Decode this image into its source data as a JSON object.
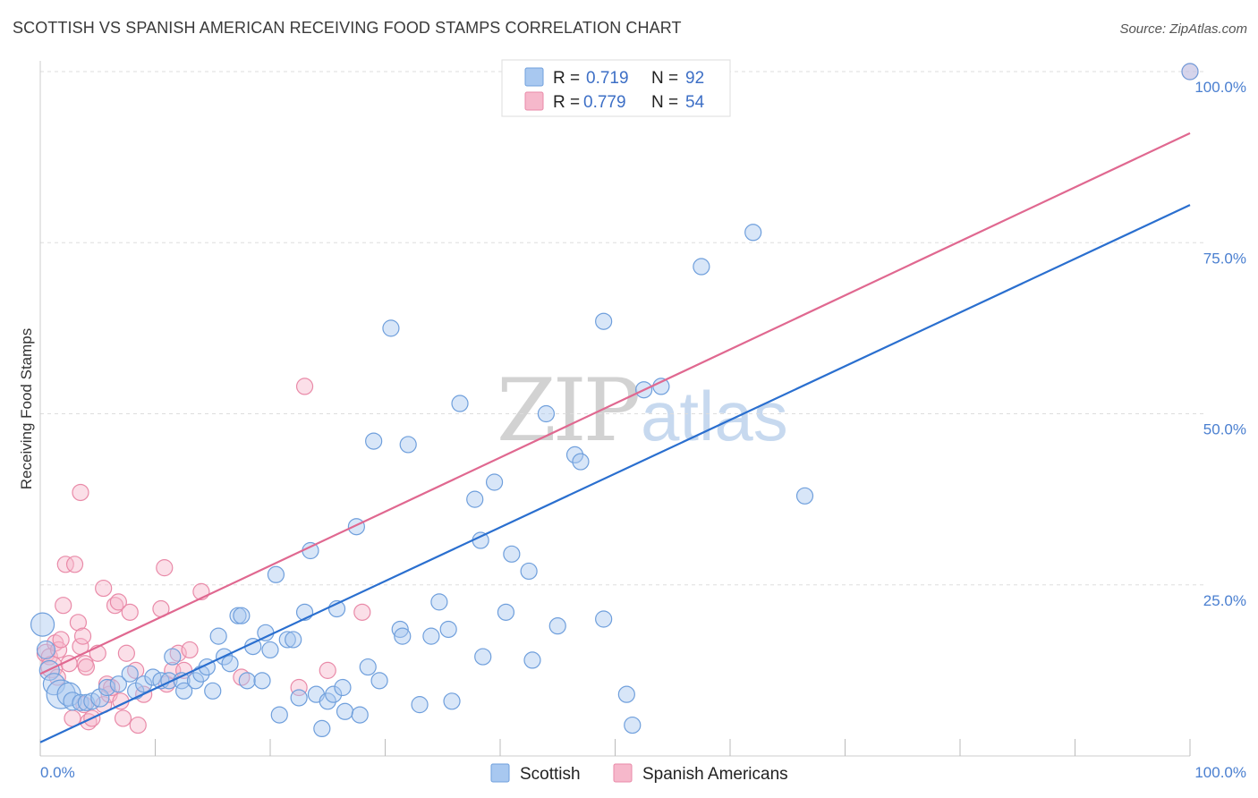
{
  "title": "SCOTTISH VS SPANISH AMERICAN RECEIVING FOOD STAMPS CORRELATION CHART",
  "source": "Source: ZipAtlas.com",
  "watermark": {
    "zip": "ZIP",
    "atlas": "atlas"
  },
  "colors": {
    "blue_fill": "#a8c8f0",
    "blue_stroke": "#6f9fdc",
    "blue_line": "#2a6fcf",
    "pink_fill": "#f6b8cb",
    "pink_stroke": "#e98aa8",
    "pink_line": "#e06890",
    "grid": "#dddddd",
    "axis_label": "#4a7fd0"
  },
  "chart_data": {
    "type": "scatter",
    "xlabel": "",
    "ylabel": "Receiving Food Stamps",
    "xlim": [
      0,
      100
    ],
    "ylim": [
      0,
      100
    ],
    "x_tick_labels": {
      "left": "0.0%",
      "right": "100.0%"
    },
    "y_tick_labels": [
      "25.0%",
      "50.0%",
      "75.0%",
      "100.0%"
    ],
    "y_ticks": [
      25,
      50,
      75,
      100
    ],
    "legend": [
      {
        "swatch": "blue",
        "r_label": "R =",
        "r_value": "0.719",
        "n_label": "N =",
        "n_value": "92"
      },
      {
        "swatch": "pink",
        "r_label": "R =",
        "r_value": "0.779",
        "n_label": "N =",
        "n_value": "54"
      }
    ],
    "bottom_legend": [
      "Scottish",
      "Spanish Americans"
    ],
    "series": [
      {
        "name": "Scottish",
        "color": "blue",
        "trend": {
          "x": [
            0,
            100
          ],
          "y": [
            2.0,
            80.5
          ]
        },
        "points": [
          [
            0.2,
            19.2,
            13
          ],
          [
            0.5,
            15.5,
            10
          ],
          [
            0.8,
            12.5,
            11
          ],
          [
            1.2,
            10.5,
            12
          ],
          [
            1.8,
            9.0,
            16
          ],
          [
            2.5,
            9.0,
            13
          ],
          [
            2.8,
            8.0,
            10
          ],
          [
            3.5,
            7.8,
            9
          ],
          [
            4.0,
            7.8,
            9
          ],
          [
            4.5,
            8.0,
            9
          ],
          [
            5.2,
            8.5,
            10
          ],
          [
            5.8,
            10.0,
            9
          ],
          [
            6.8,
            10.5,
            9
          ],
          [
            7.8,
            12.0,
            9
          ],
          [
            8.3,
            9.5,
            9
          ],
          [
            9.0,
            10.5,
            9
          ],
          [
            9.8,
            11.5,
            9
          ],
          [
            10.5,
            11.0,
            9
          ],
          [
            11.2,
            11.0,
            9
          ],
          [
            11.5,
            14.5,
            9
          ],
          [
            12.3,
            11.0,
            9
          ],
          [
            12.5,
            9.5,
            9
          ],
          [
            13.5,
            11.0,
            9
          ],
          [
            14.0,
            12.0,
            9
          ],
          [
            14.5,
            13.0,
            9
          ],
          [
            15.0,
            9.5,
            9
          ],
          [
            15.5,
            17.5,
            9
          ],
          [
            16.0,
            14.5,
            9
          ],
          [
            16.5,
            13.5,
            9
          ],
          [
            17.2,
            20.5,
            9
          ],
          [
            17.5,
            20.5,
            9
          ],
          [
            18.0,
            11.0,
            9
          ],
          [
            18.5,
            16.0,
            9
          ],
          [
            19.3,
            11.0,
            9
          ],
          [
            19.6,
            18.0,
            9
          ],
          [
            20.0,
            15.5,
            9
          ],
          [
            20.5,
            26.5,
            9
          ],
          [
            20.8,
            6.0,
            9
          ],
          [
            21.5,
            17.0,
            9
          ],
          [
            22.0,
            17.0,
            9
          ],
          [
            22.5,
            8.5,
            9
          ],
          [
            23.0,
            21.0,
            9
          ],
          [
            23.5,
            30.0,
            9
          ],
          [
            24.0,
            9.0,
            9
          ],
          [
            24.5,
            4.0,
            9
          ],
          [
            25.0,
            8.0,
            9
          ],
          [
            25.5,
            9.0,
            9
          ],
          [
            25.8,
            21.5,
            9
          ],
          [
            26.3,
            10.0,
            9
          ],
          [
            26.5,
            6.5,
            9
          ],
          [
            27.5,
            33.5,
            9
          ],
          [
            27.8,
            6.0,
            9
          ],
          [
            28.5,
            13.0,
            9
          ],
          [
            29.0,
            46.0,
            9
          ],
          [
            29.5,
            11.0,
            9
          ],
          [
            30.5,
            62.5,
            9
          ],
          [
            31.3,
            18.5,
            9
          ],
          [
            31.5,
            17.5,
            9
          ],
          [
            32.0,
            45.5,
            9
          ],
          [
            33.0,
            7.5,
            9
          ],
          [
            34.0,
            17.5,
            9
          ],
          [
            34.7,
            22.5,
            9
          ],
          [
            35.5,
            18.5,
            9
          ],
          [
            35.8,
            8.0,
            9
          ],
          [
            36.5,
            51.5,
            9
          ],
          [
            37.8,
            37.5,
            9
          ],
          [
            38.3,
            31.5,
            9
          ],
          [
            38.5,
            14.5,
            9
          ],
          [
            39.5,
            40.0,
            9
          ],
          [
            40.5,
            21.0,
            9
          ],
          [
            41.0,
            29.5,
            9
          ],
          [
            42.5,
            27.0,
            9
          ],
          [
            42.8,
            14.0,
            9
          ],
          [
            44.0,
            50.0,
            9
          ],
          [
            45.0,
            19.0,
            9
          ],
          [
            46.5,
            44.0,
            9
          ],
          [
            47.0,
            43.0,
            9
          ],
          [
            49.0,
            63.5,
            9
          ],
          [
            49.0,
            20.0,
            9
          ],
          [
            51.0,
            9.0,
            9
          ],
          [
            51.5,
            4.5,
            9
          ],
          [
            52.5,
            53.5,
            9
          ],
          [
            54.0,
            54.0,
            9
          ],
          [
            57.5,
            71.5,
            9
          ],
          [
            62.0,
            76.5,
            9
          ],
          [
            66.5,
            38.0,
            9
          ],
          [
            100.0,
            100.0,
            9
          ]
        ]
      },
      {
        "name": "Spanish Americans",
        "color": "pink",
        "trend": {
          "x": [
            0,
            100
          ],
          "y": [
            12.0,
            91.0
          ]
        },
        "points": [
          [
            0.5,
            15.0,
            10
          ],
          [
            0.8,
            14.5,
            9
          ],
          [
            1.0,
            13.0,
            12
          ],
          [
            1.3,
            16.5,
            9
          ],
          [
            1.5,
            11.5,
            9
          ],
          [
            1.6,
            15.5,
            9
          ],
          [
            1.8,
            17.0,
            9
          ],
          [
            2.0,
            22.0,
            9
          ],
          [
            2.2,
            28.0,
            9
          ],
          [
            2.5,
            13.5,
            9
          ],
          [
            2.8,
            5.5,
            9
          ],
          [
            3.0,
            28.0,
            9
          ],
          [
            3.3,
            19.5,
            9
          ],
          [
            3.5,
            16.0,
            9
          ],
          [
            3.5,
            38.5,
            9
          ],
          [
            3.7,
            17.5,
            9
          ],
          [
            3.8,
            7.5,
            9
          ],
          [
            3.9,
            13.5,
            9
          ],
          [
            4.0,
            13.0,
            9
          ],
          [
            4.2,
            5.0,
            9
          ],
          [
            4.5,
            5.5,
            9
          ],
          [
            5.0,
            15.0,
            9
          ],
          [
            5.5,
            24.5,
            9
          ],
          [
            5.5,
            7.5,
            9
          ],
          [
            5.8,
            10.5,
            9
          ],
          [
            6.0,
            9.0,
            9
          ],
          [
            6.2,
            10.0,
            9
          ],
          [
            6.5,
            22.0,
            9
          ],
          [
            6.8,
            22.5,
            9
          ],
          [
            7.0,
            8.0,
            9
          ],
          [
            7.2,
            5.5,
            9
          ],
          [
            7.5,
            15.0,
            9
          ],
          [
            7.8,
            21.0,
            9
          ],
          [
            8.3,
            12.5,
            9
          ],
          [
            8.5,
            4.5,
            9
          ],
          [
            9.0,
            9.0,
            9
          ],
          [
            10.5,
            21.5,
            9
          ],
          [
            10.8,
            27.5,
            9
          ],
          [
            11.0,
            10.5,
            9
          ],
          [
            11.5,
            12.5,
            9
          ],
          [
            12.0,
            15.0,
            9
          ],
          [
            12.5,
            12.5,
            9
          ],
          [
            13.0,
            15.5,
            9
          ],
          [
            14.0,
            24.0,
            9
          ],
          [
            17.5,
            11.5,
            9
          ],
          [
            22.5,
            10.0,
            9
          ],
          [
            23.0,
            54.0,
            9
          ],
          [
            25.0,
            12.5,
            9
          ],
          [
            28.0,
            21.0,
            9
          ],
          [
            100.0,
            100.0,
            9
          ]
        ]
      }
    ]
  }
}
